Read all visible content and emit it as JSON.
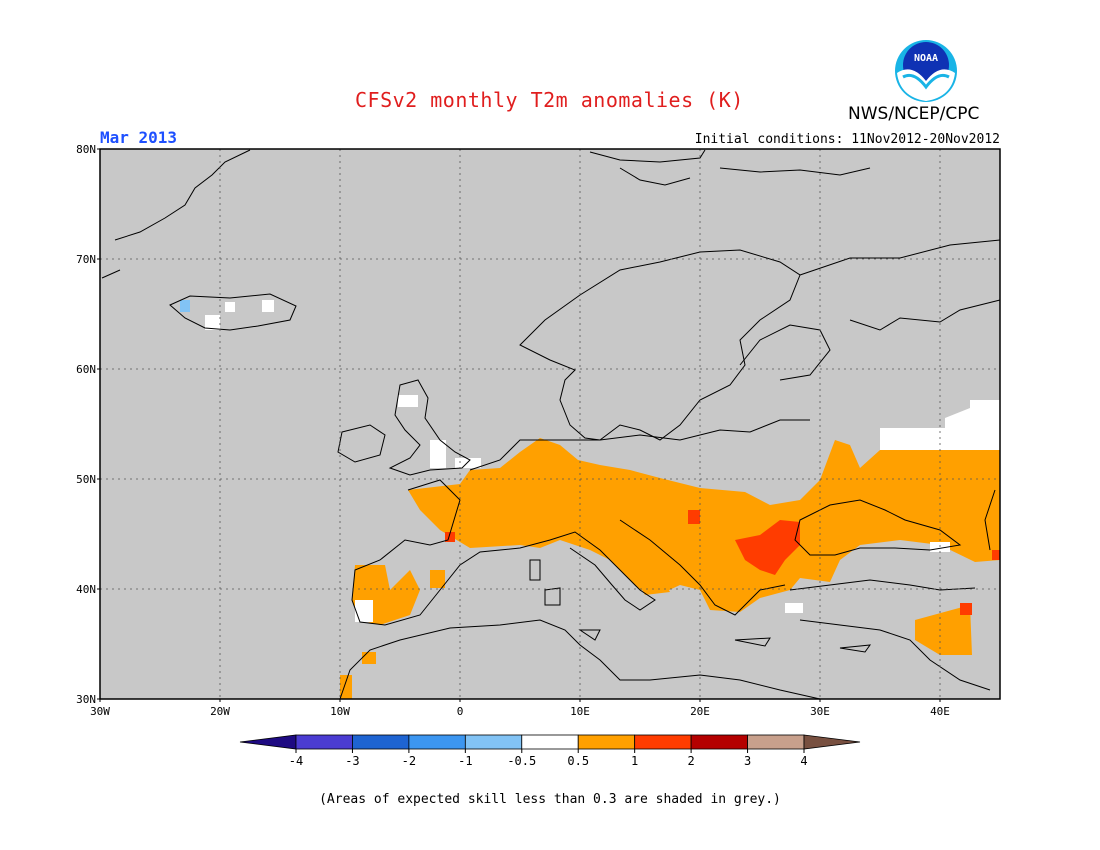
{
  "title": "CFSv2 monthly T2m anomalies (K)",
  "agency": "NWS/NCEP/CPC",
  "logo_text": "NOAA",
  "valid_month": "Mar 2013",
  "initial_conditions": "Initial conditions: 11Nov2012-20Nov2012",
  "footnote": "(Areas of expected skill less than 0.3 are shaded in grey.)",
  "map": {
    "lon_range": [
      -30,
      45
    ],
    "lat_range": [
      30,
      80
    ],
    "lat_labels": [
      "30N",
      "40N",
      "50N",
      "60N",
      "70N",
      "80N"
    ],
    "lon_labels": [
      "30W",
      "20W",
      "10W",
      "0",
      "10E",
      "20E",
      "30E",
      "40E"
    ],
    "background_color": "#c8c8c8",
    "grid": true
  },
  "colorbar": {
    "tick_labels": [
      "-4",
      "-3",
      "-2",
      "-1",
      "-0.5",
      "0.5",
      "1",
      "2",
      "3",
      "4"
    ],
    "colors": [
      "#1e0a82",
      "#4b3cd2",
      "#1e64d2",
      "#3c96f0",
      "#82c3f5",
      "#ffffff",
      "#ffa000",
      "#ff3c00",
      "#b40000",
      "#c8a08c",
      "#785040"
    ]
  }
}
